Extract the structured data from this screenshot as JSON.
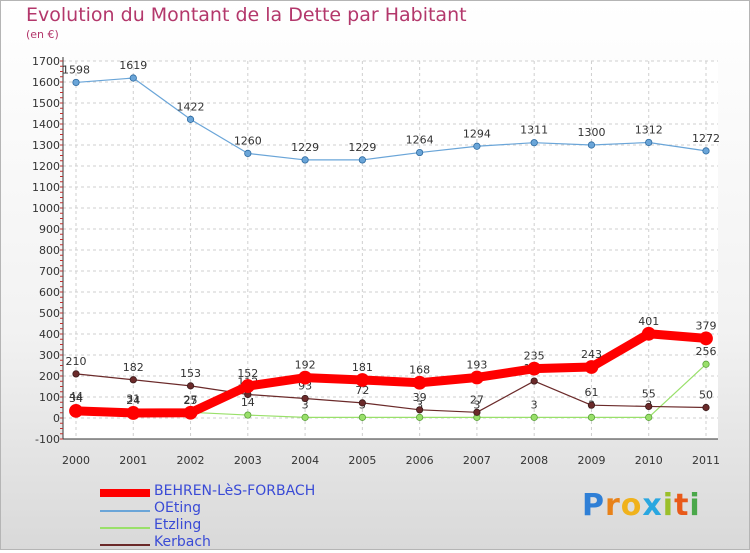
{
  "header": {
    "title": "Evolution du Montant de la Dette par Habitant",
    "unit": "(en €)"
  },
  "brand": {
    "letters": [
      "P",
      "r",
      "o",
      "x",
      "i",
      "t",
      "i"
    ],
    "colors": [
      "#2f7fd6",
      "#e8821a",
      "#f0b21c",
      "#2aa7e0",
      "#9bbf2a",
      "#e85a1a",
      "#4aa84a"
    ]
  },
  "chart_data": {
    "type": "line",
    "title": "Evolution du Montant de la Dette par Habitant",
    "ylabel": "(en €)",
    "ylim": [
      -100,
      1700
    ],
    "yticks": [
      -100,
      0,
      100,
      200,
      300,
      400,
      500,
      600,
      700,
      800,
      900,
      1000,
      1100,
      1200,
      1300,
      1400,
      1500,
      1600,
      1700
    ],
    "grid": true,
    "legend": "bottom-left",
    "x": [
      "2000",
      "2001",
      "2002",
      "2003",
      "2004",
      "2005",
      "2006",
      "2007",
      "2008",
      "2009",
      "2010",
      "2011"
    ],
    "series": [
      {
        "name": "BEHREN-LèS-FORBACH",
        "color": "#ff0000",
        "values": [
          34,
          24,
          25,
          152,
          192,
          181,
          168,
          193,
          235,
          243,
          401,
          379
        ]
      },
      {
        "name": "OEting",
        "color": "#6aa5d8",
        "values": [
          1598,
          1619,
          1422,
          1260,
          1229,
          1229,
          1264,
          1294,
          1311,
          1300,
          1312,
          1272
        ]
      },
      {
        "name": "Etzling",
        "color": "#99e06a",
        "values": [
          44,
          31,
          27,
          14,
          3,
          3,
          3,
          3,
          3,
          3,
          3,
          256
        ]
      },
      {
        "name": "Kerbach",
        "color": "#6b2a2a",
        "values": [
          210,
          182,
          153,
          112,
          93,
          72,
          39,
          27,
          176,
          61,
          55,
          50
        ]
      }
    ]
  }
}
